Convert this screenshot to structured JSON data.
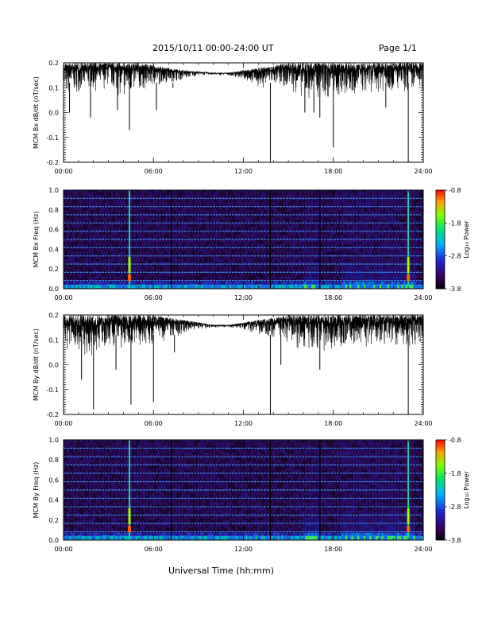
{
  "header": {
    "date_range": "2015/10/11  00:00-24:00 UT",
    "page": "Page 1/1"
  },
  "footer": {
    "xlabel": "Universal Time (hh:mm)"
  },
  "chart_data": [
    {
      "type": "line",
      "ylabel": "MCM Bx dB/dt (nT/sec)",
      "x_ticks": [
        "00:00",
        "06:00",
        "12:00",
        "18:00",
        "24:00"
      ],
      "y_ticks": [
        "-0.2",
        "-0.1",
        "0.0",
        "0.1",
        "0.2"
      ],
      "xlim": [
        0,
        24
      ],
      "ylim": [
        -0.2,
        0.2
      ],
      "series": [
        {
          "baseline_hours": [
            0,
            1,
            2,
            3,
            4,
            5,
            6,
            7,
            8,
            9,
            10,
            11,
            12,
            13,
            14,
            15,
            16,
            17,
            18,
            19,
            20,
            21,
            22,
            23,
            24
          ],
          "upper_envelope": [
            0.2,
            0.2,
            0.2,
            0.2,
            0.2,
            0.2,
            0.19,
            0.18,
            0.17,
            0.165,
            0.16,
            0.16,
            0.17,
            0.18,
            0.19,
            0.2,
            0.2,
            0.2,
            0.2,
            0.2,
            0.2,
            0.2,
            0.2,
            0.2,
            0.2
          ],
          "lower_envelope": [
            0.05,
            0.08,
            0.08,
            0.1,
            0.05,
            0.08,
            0.1,
            0.12,
            0.13,
            0.15,
            0.15,
            0.15,
            0.13,
            0.1,
            0.1,
            0.1,
            0.05,
            0.05,
            0.05,
            0.07,
            0.07,
            0.08,
            0.08,
            0.07,
            0.08
          ],
          "spikes": [
            {
              "t": 0.4,
              "v": 0.0
            },
            {
              "t": 1.8,
              "v": -0.02
            },
            {
              "t": 3.6,
              "v": 0.01
            },
            {
              "t": 4.4,
              "v": -0.07
            },
            {
              "t": 6.2,
              "v": 0.01
            },
            {
              "t": 7.3,
              "v": 0.1
            },
            {
              "t": 13.8,
              "v": -0.2
            },
            {
              "t": 16.1,
              "v": 0.0
            },
            {
              "t": 16.7,
              "v": 0.0
            },
            {
              "t": 17.1,
              "v": -0.02
            },
            {
              "t": 18.0,
              "v": -0.14
            },
            {
              "t": 21.5,
              "v": 0.02
            },
            {
              "t": 23.0,
              "v": -0.2
            }
          ]
        }
      ]
    },
    {
      "type": "heatmap",
      "ylabel": "MCM Bx Freq (Hz)",
      "x_ticks": [
        "00:00",
        "06:00",
        "12:00",
        "18:00",
        "24:00"
      ],
      "y_ticks": [
        "0.0",
        "0.2",
        "0.4",
        "0.6",
        "0.8",
        "1.0"
      ],
      "xlim": [
        0,
        24
      ],
      "ylim": [
        0,
        1.0
      ],
      "colorbar": {
        "label": "Log₁₀ Power",
        "ticks": [
          "-0.8",
          "-1.8",
          "-2.8",
          "-3.8"
        ],
        "range": [
          -3.8,
          -0.8
        ]
      },
      "harmonic_lines_hz": [
        0.083,
        0.167,
        0.25,
        0.333,
        0.417,
        0.5,
        0.583,
        0.667,
        0.75,
        0.833,
        0.917,
        1.0
      ],
      "vertical_bursts_hours": [
        4.4,
        7.2,
        13.8,
        17.1,
        23.0
      ],
      "active_periods_hours": [
        [
          16.0,
          17.0
        ],
        [
          18.5,
          23.5
        ]
      ]
    },
    {
      "type": "line",
      "ylabel": "MCM By dB/dt (nT/sec)",
      "x_ticks": [
        "00:00",
        "06:00",
        "12:00",
        "18:00",
        "24:00"
      ],
      "y_ticks": [
        "-0.2",
        "-0.1",
        "0.0",
        "0.1",
        "0.2"
      ],
      "xlim": [
        0,
        24
      ],
      "ylim": [
        -0.2,
        0.2
      ],
      "series": [
        {
          "baseline_hours": [
            0,
            1,
            2,
            3,
            4,
            5,
            6,
            7,
            8,
            9,
            10,
            11,
            12,
            13,
            14,
            15,
            16,
            17,
            18,
            19,
            20,
            21,
            22,
            23,
            24
          ],
          "upper_envelope": [
            0.2,
            0.2,
            0.2,
            0.2,
            0.2,
            0.2,
            0.2,
            0.19,
            0.18,
            0.17,
            0.16,
            0.16,
            0.17,
            0.18,
            0.19,
            0.2,
            0.2,
            0.2,
            0.2,
            0.2,
            0.2,
            0.2,
            0.2,
            0.2,
            0.2
          ],
          "lower_envelope": [
            0.05,
            0.02,
            0.03,
            0.06,
            0.05,
            0.07,
            0.08,
            0.1,
            0.12,
            0.14,
            0.15,
            0.15,
            0.14,
            0.12,
            0.1,
            0.09,
            0.05,
            0.05,
            0.06,
            0.07,
            0.07,
            0.07,
            0.08,
            0.06,
            0.08
          ],
          "spikes": [
            {
              "t": 1.2,
              "v": -0.06
            },
            {
              "t": 2.0,
              "v": -0.18
            },
            {
              "t": 3.5,
              "v": -0.02
            },
            {
              "t": 4.5,
              "v": -0.16
            },
            {
              "t": 6.0,
              "v": -0.15
            },
            {
              "t": 7.4,
              "v": 0.05
            },
            {
              "t": 13.8,
              "v": -0.2
            },
            {
              "t": 14.5,
              "v": 0.0
            },
            {
              "t": 17.1,
              "v": -0.02
            },
            {
              "t": 23.0,
              "v": -0.2
            }
          ]
        }
      ]
    },
    {
      "type": "heatmap",
      "ylabel": "MCM By Freq (Hz)",
      "x_ticks": [
        "00:00",
        "06:00",
        "12:00",
        "18:00",
        "24:00"
      ],
      "y_ticks": [
        "0.0",
        "0.2",
        "0.4",
        "0.6",
        "0.8",
        "1.0"
      ],
      "xlim": [
        0,
        24
      ],
      "ylim": [
        0,
        1.0
      ],
      "colorbar": {
        "label": "Log₁₀ Power",
        "ticks": [
          "-0.8",
          "-1.8",
          "-2.8",
          "-3.8"
        ],
        "range": [
          -3.8,
          -0.8
        ]
      },
      "harmonic_lines_hz": [
        0.083,
        0.167,
        0.25,
        0.333,
        0.417,
        0.5,
        0.583,
        0.667,
        0.75,
        0.833,
        0.917,
        1.0
      ],
      "vertical_bursts_hours": [
        4.4,
        7.2,
        13.8,
        17.1,
        23.0
      ],
      "active_periods_hours": [
        [
          16.0,
          17.0
        ],
        [
          18.5,
          23.5
        ]
      ]
    }
  ]
}
